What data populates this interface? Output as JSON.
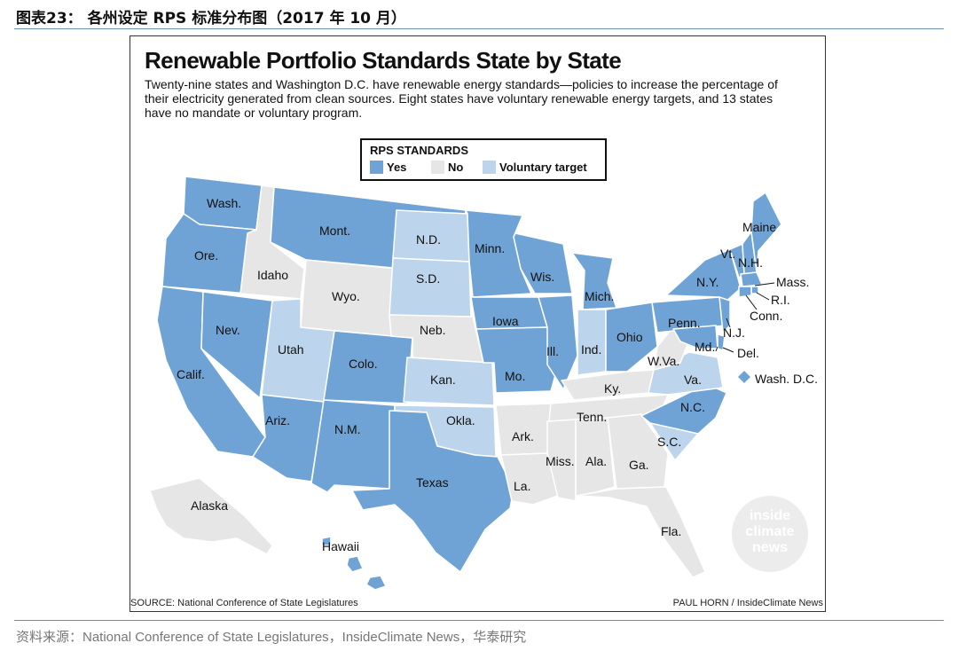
{
  "header": {
    "title": "图表23： 各州设定 RPS 标准分布图（2017 年 10 月）"
  },
  "figure": {
    "title": "Renewable Portfolio Standards State by State",
    "subtitle": "Twenty-nine states and Washington D.C. have renewable energy standards—policies to increase the percentage of their electricity generated from clean sources. Eight states have voluntary renewable energy targets, and 13 states have no mandate or voluntary program.",
    "legend": {
      "title": "RPS STANDARDS",
      "items": [
        {
          "label": "Yes",
          "color": "#6fa3d6"
        },
        {
          "label": "No",
          "color": "#e6e6e6"
        },
        {
          "label": "Voluntary target",
          "color": "#bcd5ec"
        }
      ]
    },
    "source": "SOURCE: National Conference of State Legislatures",
    "credit": "PAUL HORN / InsideClimate News",
    "watermark": [
      "inside",
      "climate",
      "news"
    ]
  },
  "map": {
    "colors": {
      "yes": "#6fa3d6",
      "no": "#e6e6e6",
      "voluntary": "#bcd5ec",
      "border": "#ffffff"
    },
    "states": [
      {
        "name": "Wash.",
        "status": "yes"
      },
      {
        "name": "Ore.",
        "status": "yes"
      },
      {
        "name": "Calif.",
        "status": "yes"
      },
      {
        "name": "Idaho",
        "status": "no"
      },
      {
        "name": "Nev.",
        "status": "yes"
      },
      {
        "name": "Mont.",
        "status": "yes"
      },
      {
        "name": "Wyo.",
        "status": "no"
      },
      {
        "name": "Utah",
        "status": "voluntary"
      },
      {
        "name": "Ariz.",
        "status": "yes"
      },
      {
        "name": "Colo.",
        "status": "yes"
      },
      {
        "name": "N.M.",
        "status": "yes"
      },
      {
        "name": "N.D.",
        "status": "voluntary"
      },
      {
        "name": "S.D.",
        "status": "voluntary"
      },
      {
        "name": "Neb.",
        "status": "no"
      },
      {
        "name": "Kan.",
        "status": "voluntary"
      },
      {
        "name": "Okla.",
        "status": "voluntary"
      },
      {
        "name": "Texas",
        "status": "yes"
      },
      {
        "name": "Minn.",
        "status": "yes"
      },
      {
        "name": "Iowa",
        "status": "yes"
      },
      {
        "name": "Mo.",
        "status": "yes"
      },
      {
        "name": "Ark.",
        "status": "no"
      },
      {
        "name": "La.",
        "status": "no"
      },
      {
        "name": "Wis.",
        "status": "yes"
      },
      {
        "name": "Ill.",
        "status": "yes"
      },
      {
        "name": "Mich.",
        "status": "yes"
      },
      {
        "name": "Ind.",
        "status": "voluntary"
      },
      {
        "name": "Ohio",
        "status": "yes"
      },
      {
        "name": "Ky.",
        "status": "no"
      },
      {
        "name": "Tenn.",
        "status": "no"
      },
      {
        "name": "Miss.",
        "status": "no"
      },
      {
        "name": "Ala.",
        "status": "no"
      },
      {
        "name": "Ga.",
        "status": "no"
      },
      {
        "name": "Fla.",
        "status": "no"
      },
      {
        "name": "S.C.",
        "status": "voluntary"
      },
      {
        "name": "N.C.",
        "status": "yes"
      },
      {
        "name": "Va.",
        "status": "voluntary"
      },
      {
        "name": "W.Va.",
        "status": "no"
      },
      {
        "name": "Penn.",
        "status": "yes"
      },
      {
        "name": "N.Y.",
        "status": "yes"
      },
      {
        "name": "Vt.",
        "status": "yes"
      },
      {
        "name": "N.H.",
        "status": "yes"
      },
      {
        "name": "Maine",
        "status": "yes"
      },
      {
        "name": "Mass.",
        "status": "yes"
      },
      {
        "name": "R.I.",
        "status": "yes"
      },
      {
        "name": "Conn.",
        "status": "yes"
      },
      {
        "name": "N.J.",
        "status": "yes"
      },
      {
        "name": "Del.",
        "status": "yes"
      },
      {
        "name": "Md.",
        "status": "yes"
      },
      {
        "name": "Wash. D.C.",
        "status": "yes"
      },
      {
        "name": "Alaska",
        "status": "no"
      },
      {
        "name": "Hawaii",
        "status": "yes"
      }
    ]
  },
  "footer": {
    "source_line": "资料来源：National Conference of State Legislatures，InsideClimate News，华泰研究"
  }
}
